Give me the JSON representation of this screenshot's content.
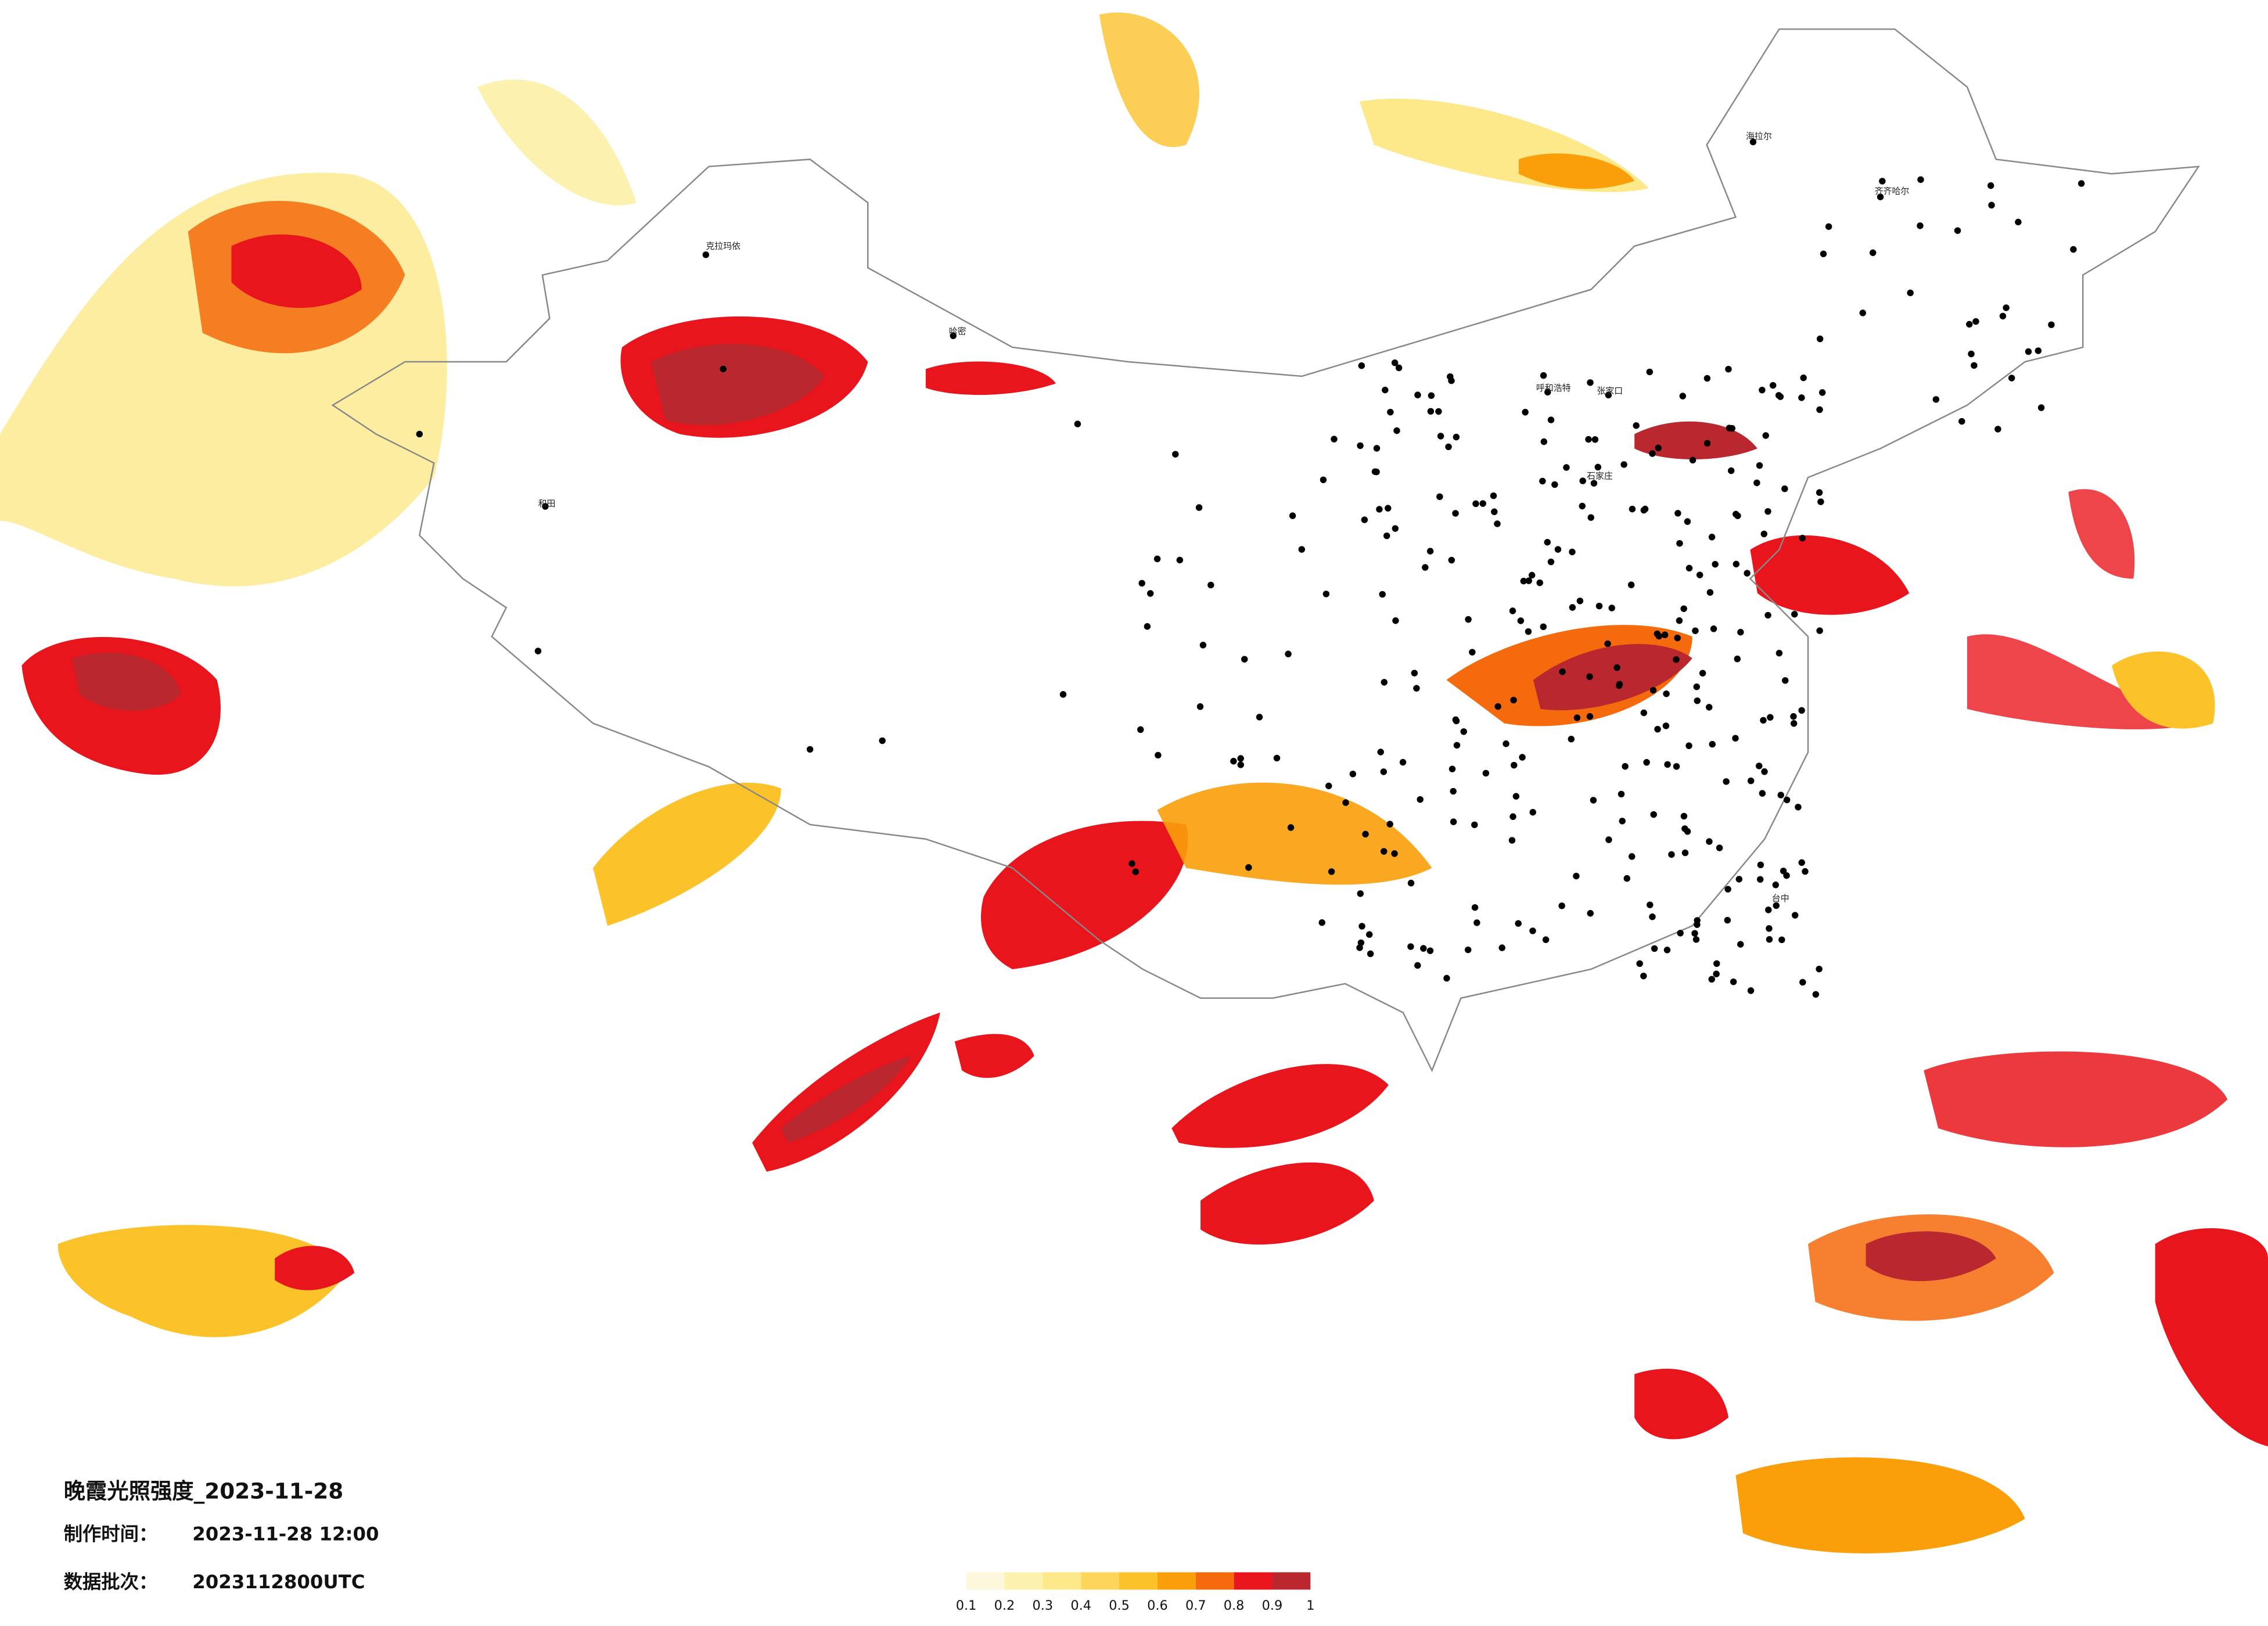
{
  "header": {
    "title": "晚霞光照强度_2023-11-28",
    "made_label": "制作时间：",
    "made_time": "2023-11-28 12:00",
    "batch_label": "数据批次：",
    "batch": "2023112800UTC"
  },
  "legend": {
    "colors": [
      "#fdf8dc",
      "#fdf1b0",
      "#fde88a",
      "#fdd55b",
      "#fcc22a",
      "#fa9e0a",
      "#f46a0c",
      "#e8161c",
      "#b8282e"
    ],
    "ticks": [
      0.1,
      0.2,
      0.3,
      0.4,
      0.5,
      0.6,
      0.7,
      0.8,
      0.9,
      1
    ]
  },
  "cities": [
    "克拉玛依",
    "和田",
    "哈密",
    "海拉尔",
    "齐齐哈尔",
    "呼和浩特",
    "张家口",
    "石家庄",
    "台中"
  ]
}
